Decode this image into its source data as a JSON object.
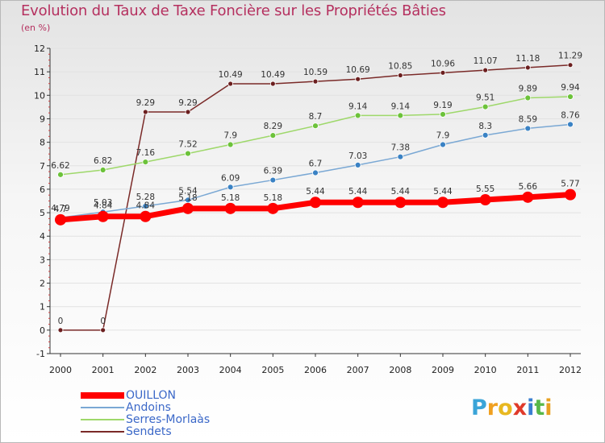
{
  "title": "Evolution du Taux de Taxe Foncière sur les Propriétés Bâties",
  "subtitle": "(en %)",
  "logo": {
    "text": "Proxiti",
    "letters": [
      {
        "ch": "P",
        "color": "#3aa4d8"
      },
      {
        "ch": "r",
        "color": "#f0a020"
      },
      {
        "ch": "o",
        "color": "#e8b820"
      },
      {
        "ch": "x",
        "color": "#e03a2a"
      },
      {
        "ch": "i",
        "color": "#3a7fd0"
      },
      {
        "ch": "t",
        "color": "#58b848"
      },
      {
        "ch": "i",
        "color": "#e8a020"
      }
    ]
  },
  "chart_data": {
    "type": "line",
    "title": "Evolution du Taux de Taxe Foncière sur les Propriétés Bâties",
    "ylabel": "(en %)",
    "xlabel": "",
    "x": [
      "2000",
      "2001",
      "2002",
      "2003",
      "2004",
      "2005",
      "2006",
      "2007",
      "2008",
      "2009",
      "2010",
      "2011",
      "2012"
    ],
    "ylim": [
      -1,
      12
    ],
    "yticks": [
      "-1",
      "0",
      "1",
      "2",
      "3",
      "4",
      "5",
      "6",
      "7",
      "8",
      "9",
      "10",
      "11",
      "12"
    ],
    "series": [
      {
        "name": "Sendets",
        "color": "#7a2a28",
        "markerColor": "#6b1f1f",
        "width": 1.5,
        "marker": 3,
        "values": [
          0,
          0,
          9.29,
          9.29,
          10.49,
          10.49,
          10.59,
          10.69,
          10.85,
          10.96,
          11.07,
          11.18,
          11.29
        ],
        "labels": [
          "0",
          "0",
          "9.29",
          "9.29",
          "10.49",
          "10.49",
          "10.59",
          "10.69",
          "10.85",
          "10.96",
          "11.07",
          "11.18",
          "11.29"
        ]
      },
      {
        "name": "Serres-Morlaàs",
        "color": "#9ed86a",
        "markerColor": "#6cc23a",
        "width": 1.5,
        "marker": 3.5,
        "values": [
          6.62,
          6.82,
          7.16,
          7.52,
          7.9,
          8.29,
          8.7,
          9.14,
          9.14,
          9.19,
          9.51,
          9.89,
          9.94
        ],
        "labels": [
          "6.62",
          "6.82",
          "7.16",
          "7.52",
          "7.9",
          "8.29",
          "8.7",
          "9.14",
          "9.14",
          "9.19",
          "9.51",
          "9.89",
          "9.94"
        ]
      },
      {
        "name": "Andoins",
        "color": "#7aa8d4",
        "markerColor": "#3a82c4",
        "width": 1.5,
        "marker": 3.5,
        "values": [
          4.79,
          5.03,
          5.28,
          5.54,
          6.09,
          6.39,
          6.7,
          7.03,
          7.38,
          7.9,
          8.3,
          8.59,
          8.76
        ],
        "labels": [
          "4.79",
          "5.03",
          "5.28",
          "5.54",
          "6.09",
          "6.39",
          "6.7",
          "7.03",
          "7.38",
          "7.9",
          "8.3",
          "8.59",
          "8.76"
        ]
      },
      {
        "name": "OUILLON",
        "color": "#ff0000",
        "markerColor": "#ff0000",
        "width": 7,
        "marker": 7,
        "values": [
          4.7,
          4.84,
          4.84,
          5.18,
          5.18,
          5.18,
          5.44,
          5.44,
          5.44,
          5.44,
          5.55,
          5.66,
          5.77
        ],
        "labels": [
          "4.7",
          "4.84",
          "4.84",
          "5.18",
          "5.18",
          "5.18",
          "5.44",
          "5.44",
          "5.44",
          "5.44",
          "5.55",
          "5.66",
          "5.77"
        ]
      }
    ],
    "legend": [
      {
        "name": "OUILLON",
        "color": "#ff0000",
        "thickness": 8
      },
      {
        "name": "Andoins",
        "color": "#7aa8d4",
        "thickness": 2
      },
      {
        "name": "Serres-Morlaàs",
        "color": "#9ed86a",
        "thickness": 2
      },
      {
        "name": "Sendets",
        "color": "#7a2a28",
        "thickness": 2
      }
    ],
    "legend_position": "bottom-left"
  }
}
